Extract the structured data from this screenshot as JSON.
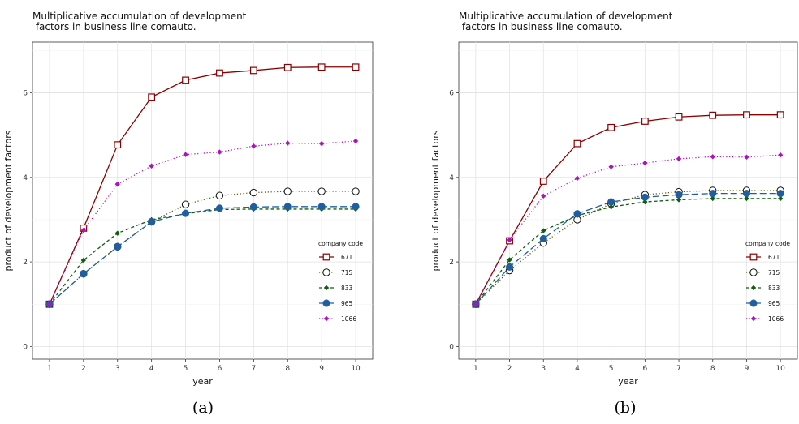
{
  "figure": {
    "captions": [
      "(a)",
      "(b)"
    ]
  },
  "chart_data": [
    {
      "type": "line",
      "title": "Multiplicative accumulation of development\n factors in business line comauto.",
      "xlabel": "year",
      "ylabel": "product of development factors",
      "x": [
        1,
        2,
        3,
        4,
        5,
        6,
        7,
        8,
        9,
        10
      ],
      "xlim": [
        0.5,
        10.5
      ],
      "ylim": [
        -0.3,
        7.2
      ],
      "yticks": [
        0,
        2,
        4,
        6
      ],
      "grid": true,
      "legend": {
        "title": "company code",
        "position": "right"
      },
      "series": [
        {
          "name": "671",
          "color": "#8b0000",
          "marker": "square-open",
          "dash": "solid",
          "values": [
            1.0,
            2.8,
            4.77,
            5.9,
            6.3,
            6.47,
            6.53,
            6.6,
            6.61,
            6.61
          ]
        },
        {
          "name": "715",
          "color": "#5c5c00",
          "marker": "circle-open",
          "dash": "dotted",
          "values": [
            1.0,
            1.72,
            2.36,
            2.95,
            3.36,
            3.57,
            3.64,
            3.67,
            3.67,
            3.67
          ]
        },
        {
          "name": "833",
          "color": "#0e5e0e",
          "marker": "diamond",
          "dash": "dashed",
          "values": [
            1.0,
            2.04,
            2.68,
            3.0,
            3.14,
            3.24,
            3.25,
            3.25,
            3.25,
            3.25
          ]
        },
        {
          "name": "965",
          "color": "#1f5fa0",
          "marker": "circle",
          "dash": "longdash",
          "values": [
            1.0,
            1.72,
            2.36,
            2.95,
            3.15,
            3.27,
            3.3,
            3.31,
            3.31,
            3.31
          ]
        },
        {
          "name": "1066",
          "color": "#b010c0",
          "marker": "diamond",
          "dash": "dotted",
          "values": [
            1.0,
            2.75,
            3.84,
            4.27,
            4.54,
            4.6,
            4.74,
            4.81,
            4.8,
            4.86
          ]
        }
      ]
    },
    {
      "type": "line",
      "title": "Multiplicative accumulation of development\n factors in business line comauto.",
      "xlabel": "year",
      "ylabel": "product of development factors",
      "x": [
        1,
        2,
        3,
        4,
        5,
        6,
        7,
        8,
        9,
        10
      ],
      "xlim": [
        0.5,
        10.5
      ],
      "ylim": [
        -0.3,
        7.2
      ],
      "yticks": [
        0,
        2,
        4,
        6
      ],
      "grid": true,
      "legend": {
        "title": "company code",
        "position": "right"
      },
      "series": [
        {
          "name": "671",
          "color": "#8b0000",
          "marker": "square-open",
          "dash": "solid",
          "values": [
            1.0,
            2.5,
            3.91,
            4.8,
            5.18,
            5.33,
            5.43,
            5.47,
            5.48,
            5.48
          ]
        },
        {
          "name": "715",
          "color": "#5c5c00",
          "marker": "circle-open",
          "dash": "dotted",
          "values": [
            1.0,
            1.8,
            2.45,
            3.0,
            3.38,
            3.59,
            3.66,
            3.69,
            3.69,
            3.69
          ]
        },
        {
          "name": "833",
          "color": "#0e5e0e",
          "marker": "diamond",
          "dash": "dashed",
          "values": [
            1.0,
            2.05,
            2.74,
            3.1,
            3.3,
            3.42,
            3.47,
            3.5,
            3.5,
            3.5
          ]
        },
        {
          "name": "965",
          "color": "#1f5fa0",
          "marker": "circle",
          "dash": "longdash",
          "values": [
            1.0,
            1.88,
            2.55,
            3.14,
            3.42,
            3.53,
            3.59,
            3.62,
            3.62,
            3.62
          ]
        },
        {
          "name": "1066",
          "color": "#b010c0",
          "marker": "diamond",
          "dash": "dotted",
          "values": [
            1.0,
            2.52,
            3.56,
            3.98,
            4.25,
            4.34,
            4.44,
            4.49,
            4.48,
            4.53
          ]
        }
      ]
    }
  ]
}
